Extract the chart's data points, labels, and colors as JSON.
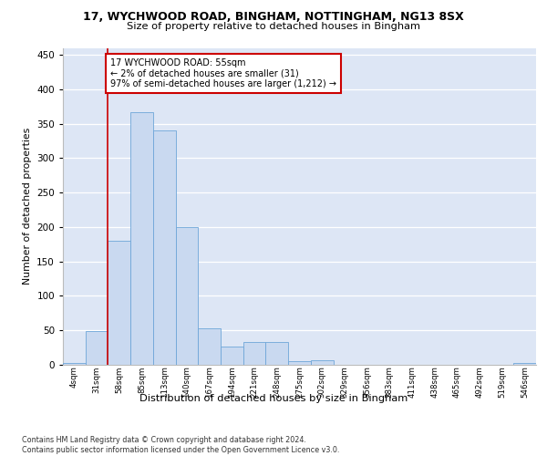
{
  "title1": "17, WYCHWOOD ROAD, BINGHAM, NOTTINGHAM, NG13 8SX",
  "title2": "Size of property relative to detached houses in Bingham",
  "xlabel": "Distribution of detached houses by size in Bingham",
  "ylabel": "Number of detached properties",
  "bin_labels": [
    "4sqm",
    "31sqm",
    "58sqm",
    "85sqm",
    "113sqm",
    "140sqm",
    "167sqm",
    "194sqm",
    "221sqm",
    "248sqm",
    "275sqm",
    "302sqm",
    "329sqm",
    "356sqm",
    "383sqm",
    "411sqm",
    "438sqm",
    "465sqm",
    "492sqm",
    "519sqm",
    "546sqm"
  ],
  "bar_values": [
    3,
    49,
    180,
    367,
    340,
    200,
    53,
    27,
    33,
    33,
    5,
    6,
    0,
    0,
    0,
    0,
    0,
    0,
    0,
    0,
    3
  ],
  "bar_color": "#c9d9f0",
  "bar_edgecolor": "#6ea6d8",
  "vline_x": 1.5,
  "vline_color": "#cc0000",
  "annotation_text": "17 WYCHWOOD ROAD: 55sqm\n← 2% of detached houses are smaller (31)\n97% of semi-detached houses are larger (1,212) →",
  "annotation_box_color": "#ffffff",
  "annotation_box_edgecolor": "#cc0000",
  "ylim": [
    0,
    460
  ],
  "yticks": [
    0,
    50,
    100,
    150,
    200,
    250,
    300,
    350,
    400,
    450
  ],
  "bg_color": "#dde6f5",
  "footer": "Contains HM Land Registry data © Crown copyright and database right 2024.\nContains public sector information licensed under the Open Government Licence v3.0."
}
